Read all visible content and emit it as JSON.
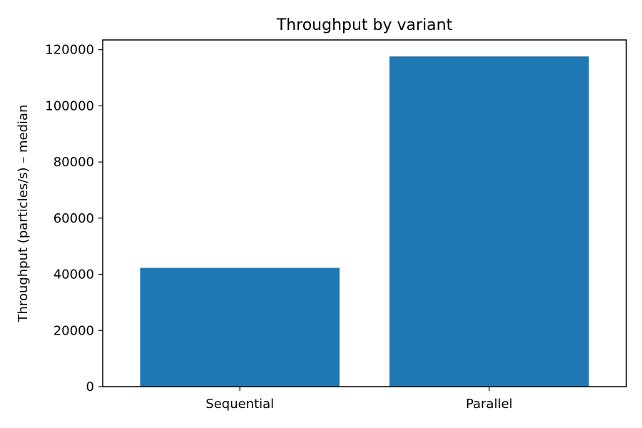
{
  "chart_data": {
    "type": "bar",
    "title": "Throughput by variant",
    "xlabel": "",
    "ylabel": "Throughput (particles/s) – median",
    "categories": [
      "Sequential",
      "Parallel"
    ],
    "values": [
      42300,
      117600
    ],
    "ylim": [
      0,
      123480
    ],
    "yticks": [
      0,
      20000,
      40000,
      60000,
      80000,
      100000,
      120000
    ],
    "grid": false,
    "legend": "none",
    "bar_color": "#1f77b4"
  }
}
